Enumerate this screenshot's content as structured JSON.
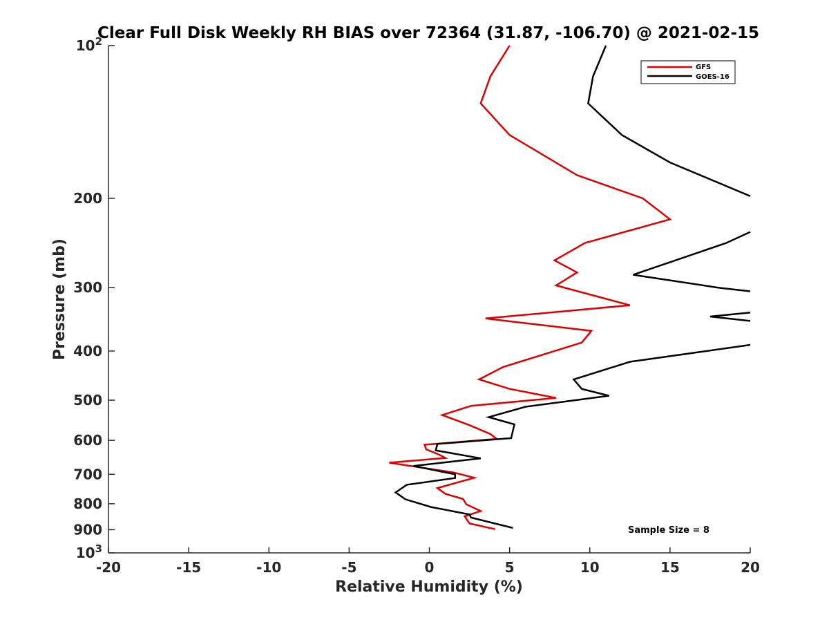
{
  "chart_data": {
    "type": "line",
    "title": "Clear Full Disk Weekly RH BIAS over 72364 (31.87, -106.70) @ 2021-02-15",
    "xlabel": "Relative Humidity (%)",
    "ylabel": "Pressure (mb)",
    "xlim": [
      -20,
      20
    ],
    "ylim": [
      100,
      1000
    ],
    "y_scale": "log",
    "y_reversed": true,
    "grid": false,
    "legend_position": "top-right",
    "x_ticks": [
      "-20",
      "-15",
      "-10",
      "-5",
      "0",
      "5",
      "10",
      "15",
      "20"
    ],
    "y_ticks": [
      {
        "value": 100,
        "base": "10",
        "exp": "2"
      },
      {
        "value": 200,
        "label": "200"
      },
      {
        "value": 300,
        "label": "300"
      },
      {
        "value": 400,
        "label": "400"
      },
      {
        "value": 500,
        "label": "500"
      },
      {
        "value": 600,
        "label": "600"
      },
      {
        "value": 700,
        "label": "700"
      },
      {
        "value": 800,
        "label": "800"
      },
      {
        "value": 900,
        "label": "900"
      },
      {
        "value": 1000,
        "base": "10",
        "exp": "3"
      }
    ],
    "annotation": "Sample Size = 8",
    "series": [
      {
        "name": "GFS",
        "color": "#dd0000",
        "points": [
          [
            5.0,
            100
          ],
          [
            3.8,
            115
          ],
          [
            3.2,
            130
          ],
          [
            5.0,
            150
          ],
          [
            9.2,
            180
          ],
          [
            13.3,
            200
          ],
          [
            15.0,
            220
          ],
          [
            9.7,
            245
          ],
          [
            7.8,
            265
          ],
          [
            9.2,
            280
          ],
          [
            7.9,
            297
          ],
          [
            12.5,
            325
          ],
          [
            3.5,
            345
          ],
          [
            10.1,
            365
          ],
          [
            9.5,
            385
          ],
          [
            4.6,
            430
          ],
          [
            3.1,
            455
          ],
          [
            5.0,
            475
          ],
          [
            7.9,
            495
          ],
          [
            2.6,
            513
          ],
          [
            0.8,
            535
          ],
          [
            2.5,
            560
          ],
          [
            3.8,
            583
          ],
          [
            4.2,
            596
          ],
          [
            -0.3,
            612
          ],
          [
            -0.2,
            625
          ],
          [
            0.6,
            640
          ],
          [
            1.0,
            650
          ],
          [
            -2.5,
            664
          ],
          [
            1.5,
            694
          ],
          [
            2.8,
            711
          ],
          [
            0.5,
            745
          ],
          [
            1.0,
            765
          ],
          [
            2.1,
            783
          ],
          [
            2.3,
            802
          ],
          [
            3.2,
            827
          ],
          [
            2.2,
            847
          ],
          [
            2.5,
            875
          ],
          [
            4.1,
            898
          ]
        ]
      },
      {
        "name": "GOES-16",
        "color": "#000000",
        "points": [
          [
            11.0,
            100
          ],
          [
            10.2,
            115
          ],
          [
            9.9,
            130
          ],
          [
            12.0,
            150
          ],
          [
            15.0,
            170
          ],
          [
            20.0,
            198
          ],
          [
            null,
            null
          ],
          [
            20.0,
            233
          ],
          [
            18.5,
            245
          ],
          [
            12.7,
            283
          ],
          [
            18.0,
            300
          ],
          [
            20.0,
            305
          ],
          [
            null,
            null
          ],
          [
            20.0,
            336
          ],
          [
            17.5,
            342
          ],
          [
            20.0,
            349
          ],
          [
            null,
            null
          ],
          [
            20.0,
            389
          ],
          [
            12.5,
            420
          ],
          [
            9.0,
            455
          ],
          [
            9.5,
            475
          ],
          [
            11.2,
            490
          ],
          [
            6.0,
            515
          ],
          [
            3.7,
            540
          ],
          [
            5.3,
            558
          ],
          [
            5.1,
            594
          ],
          [
            0.5,
            610
          ],
          [
            0.4,
            628
          ],
          [
            3.2,
            651
          ],
          [
            -1.0,
            674
          ],
          [
            1.6,
            700
          ],
          [
            1.6,
            712
          ],
          [
            -1.4,
            734
          ],
          [
            -2.1,
            760
          ],
          [
            -1.5,
            784
          ],
          [
            0.1,
            812
          ],
          [
            2.5,
            840
          ],
          [
            2.6,
            852
          ],
          [
            5.2,
            893
          ]
        ]
      }
    ]
  }
}
